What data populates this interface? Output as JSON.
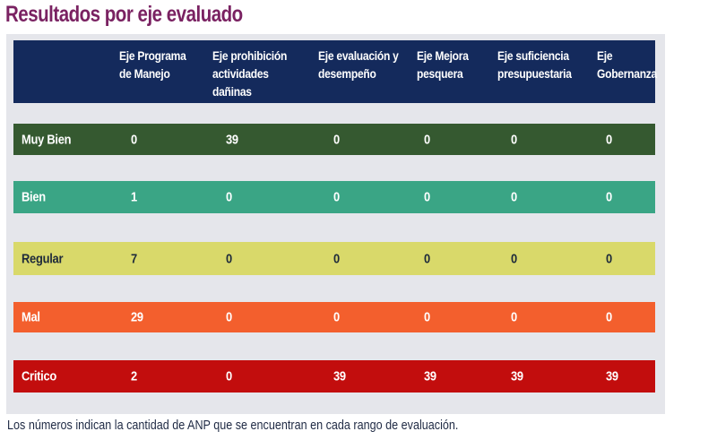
{
  "title": "Resultados por eje evaluado",
  "colors": {
    "title": "#7a2262",
    "panel_bg": "#e5e6eb",
    "header_bg": "#142a5c",
    "header_text": "#ffffff",
    "footnote_text": "#1f2a44"
  },
  "table": {
    "headers": [
      "",
      "Eje Programa de Manejo",
      "Eje prohibición actividades dañinas",
      "Eje evaluación y desempeño",
      "Eje Mejora pesquera",
      "Eje suficiencia presupuestaria",
      "Eje Gobernanza"
    ],
    "rows": [
      {
        "label": "Muy Bien",
        "bg": "#355930",
        "fg": "#ffffff",
        "values": [
          "0",
          "39",
          "0",
          "0",
          "0",
          "0"
        ]
      },
      {
        "label": "Bien",
        "bg": "#3aa585",
        "fg": "#ffffff",
        "values": [
          "1",
          "0",
          "0",
          "0",
          "0",
          "0"
        ]
      },
      {
        "label": "Regular",
        "bg": "#d9d96a",
        "fg": "#1e2a3a",
        "values": [
          "7",
          "0",
          "0",
          "0",
          "0",
          "0"
        ]
      },
      {
        "label": "Mal",
        "bg": "#f35f2d",
        "fg": "#ffffff",
        "values": [
          "29",
          "0",
          "0",
          "0",
          "0",
          "0"
        ]
      },
      {
        "label": "Critico",
        "bg": "#c20d0d",
        "fg": "#ffffff",
        "values": [
          "2",
          "0",
          "39",
          "39",
          "39",
          "39"
        ]
      }
    ]
  },
  "footnote": "Los números indican la cantidad de ANP que se encuentran en cada rango de evaluación."
}
